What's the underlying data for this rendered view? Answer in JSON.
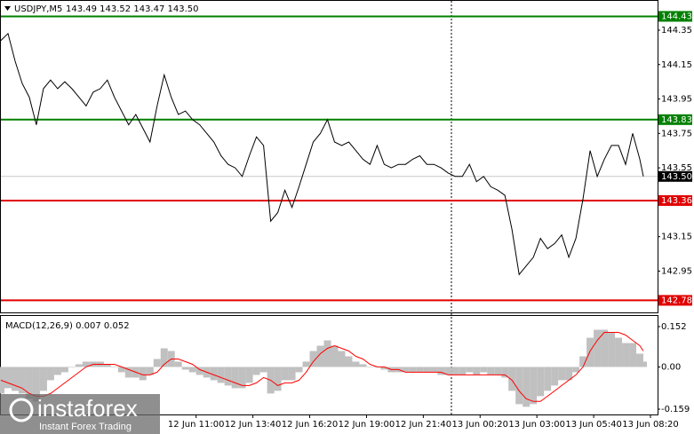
{
  "chart_data": [
    {
      "type": "line",
      "title": "USDJPY,M5",
      "ohlc": "143.49 143.52 143.47 143.50",
      "color": "#000000",
      "x": [
        0,
        4,
        8,
        12,
        16,
        20,
        24,
        28,
        32,
        36,
        40,
        44,
        48,
        52,
        56,
        60,
        64,
        68,
        72,
        76,
        80,
        84,
        88,
        92,
        96,
        100,
        104,
        108,
        112,
        116,
        120,
        124,
        128,
        132,
        136,
        140,
        144,
        148,
        152,
        156,
        160,
        164,
        168,
        172,
        176,
        180,
        184,
        188,
        192,
        196,
        200,
        204,
        208,
        212,
        216,
        220,
        224,
        228,
        232,
        236,
        240,
        244,
        248,
        252,
        256,
        260,
        264,
        268,
        272,
        276,
        280,
        284,
        288,
        292,
        296,
        300,
        304,
        308,
        312,
        316,
        320,
        324,
        328,
        332,
        336,
        340,
        344,
        348,
        352,
        356,
        360,
        362
      ],
      "values": [
        144.29,
        144.33,
        144.17,
        144.04,
        143.96,
        143.8,
        144.01,
        144.06,
        144.01,
        144.05,
        144.01,
        143.96,
        143.91,
        143.99,
        144.01,
        144.06,
        143.96,
        143.88,
        143.8,
        143.86,
        143.78,
        143.7,
        143.91,
        144.09,
        143.96,
        143.86,
        143.88,
        143.83,
        143.8,
        143.75,
        143.7,
        143.62,
        143.57,
        143.55,
        143.5,
        143.62,
        143.73,
        143.68,
        143.24,
        143.29,
        143.42,
        143.32,
        143.44,
        143.57,
        143.7,
        143.75,
        143.83,
        143.7,
        143.68,
        143.7,
        143.65,
        143.6,
        143.57,
        143.68,
        143.57,
        143.55,
        143.57,
        143.57,
        143.6,
        143.62,
        143.57,
        143.57,
        143.55,
        143.52,
        143.5,
        143.5,
        143.57,
        143.47,
        143.5,
        143.44,
        143.42,
        143.39,
        143.19,
        142.93,
        142.98,
        143.03,
        143.14,
        143.08,
        143.11,
        143.16,
        143.03,
        143.14,
        143.37,
        143.65,
        143.5,
        143.6,
        143.68,
        143.68,
        143.57,
        143.75,
        143.6,
        143.5
      ],
      "xlim": [
        0,
        370
      ],
      "xticks": [
        {
          "value": 110,
          "label": "12 Jun 11:00"
        },
        {
          "value": 142,
          "label": "12 Jun 13:40"
        },
        {
          "value": 174,
          "label": "12 Jun 16:20"
        },
        {
          "value": 206,
          "label": "12 Jun 19:00"
        },
        {
          "value": 238,
          "label": "12 Jun 21:40"
        },
        {
          "value": 270,
          "label": "13 Jun 00:20"
        },
        {
          "value": 302,
          "label": "13 Jun 03:00"
        },
        {
          "value": 334,
          "label": "13 Jun 05:40"
        },
        {
          "value": 366,
          "label": "13 Jun 08:20"
        }
      ],
      "ylim": [
        142.71,
        144.52
      ],
      "yticks": [
        144.35,
        144.15,
        143.95,
        143.75,
        143.55,
        143.15,
        142.95
      ],
      "levels": [
        {
          "value": 144.43,
          "color": "#008000"
        },
        {
          "value": 143.83,
          "color": "#008000"
        },
        {
          "value": 143.36,
          "color": "#e00000"
        },
        {
          "value": 142.78,
          "color": "#e00000"
        }
      ],
      "current": {
        "value": 143.5,
        "label": "143.50"
      },
      "watermark": "instaforex",
      "watermark_sub": "Instant Forex Trading"
    },
    {
      "type": "macd",
      "title": "MACD(12,26,9) 0.007 0.052",
      "histogram_color": "#c0c0c0",
      "signal_color": "#ff0000",
      "histogram": [
        -0.1,
        -0.08,
        -0.09,
        -0.1,
        -0.12,
        -0.13,
        -0.09,
        -0.05,
        -0.03,
        -0.02,
        0,
        0.01,
        0.02,
        0.02,
        0.02,
        0.01,
        0,
        -0.02,
        -0.04,
        -0.04,
        -0.05,
        -0.03,
        0.03,
        0.07,
        0.06,
        0.02,
        -0.01,
        -0.02,
        -0.03,
        -0.04,
        -0.05,
        -0.06,
        -0.07,
        -0.08,
        -0.08,
        -0.06,
        -0.03,
        -0.02,
        -0.1,
        -0.09,
        -0.05,
        -0.05,
        -0.02,
        0.02,
        0.06,
        0.08,
        0.1,
        0.08,
        0.06,
        0.04,
        0.02,
        0.01,
        0,
        0,
        -0.01,
        -0.02,
        -0.02,
        -0.02,
        -0.02,
        -0.02,
        -0.02,
        -0.02,
        -0.03,
        -0.03,
        -0.03,
        -0.03,
        -0.02,
        -0.03,
        -0.02,
        -0.03,
        -0.03,
        -0.04,
        -0.09,
        -0.14,
        -0.15,
        -0.14,
        -0.11,
        -0.09,
        -0.07,
        -0.05,
        -0.05,
        -0.02,
        0.04,
        0.11,
        0.14,
        0.14,
        0.13,
        0.11,
        0.09,
        0.09,
        0.05,
        0.02
      ],
      "signal": [
        -0.05,
        -0.06,
        -0.07,
        -0.08,
        -0.1,
        -0.11,
        -0.11,
        -0.1,
        -0.08,
        -0.06,
        -0.04,
        -0.02,
        0,
        0.01,
        0.01,
        0.01,
        0.01,
        0,
        -0.01,
        -0.02,
        -0.03,
        -0.03,
        -0.02,
        0.01,
        0.03,
        0.03,
        0.02,
        0.01,
        -0.01,
        -0.02,
        -0.03,
        -0.04,
        -0.05,
        -0.06,
        -0.07,
        -0.07,
        -0.06,
        -0.04,
        -0.05,
        -0.07,
        -0.06,
        -0.06,
        -0.05,
        -0.02,
        0.02,
        0.05,
        0.07,
        0.08,
        0.07,
        0.06,
        0.04,
        0.03,
        0.01,
        0,
        0,
        -0.01,
        -0.01,
        -0.02,
        -0.02,
        -0.02,
        -0.02,
        -0.02,
        -0.02,
        -0.03,
        -0.03,
        -0.03,
        -0.03,
        -0.03,
        -0.03,
        -0.03,
        -0.03,
        -0.03,
        -0.05,
        -0.09,
        -0.12,
        -0.13,
        -0.13,
        -0.11,
        -0.09,
        -0.07,
        -0.05,
        -0.03,
        0,
        0.06,
        0.1,
        0.13,
        0.13,
        0.13,
        0.12,
        0.1,
        0.08,
        0.06
      ],
      "ylim": [
        -0.179,
        0.192
      ],
      "yticks": [
        0.152,
        {
          "value": 0,
          "label": "0.00"
        },
        -0.159
      ]
    }
  ]
}
